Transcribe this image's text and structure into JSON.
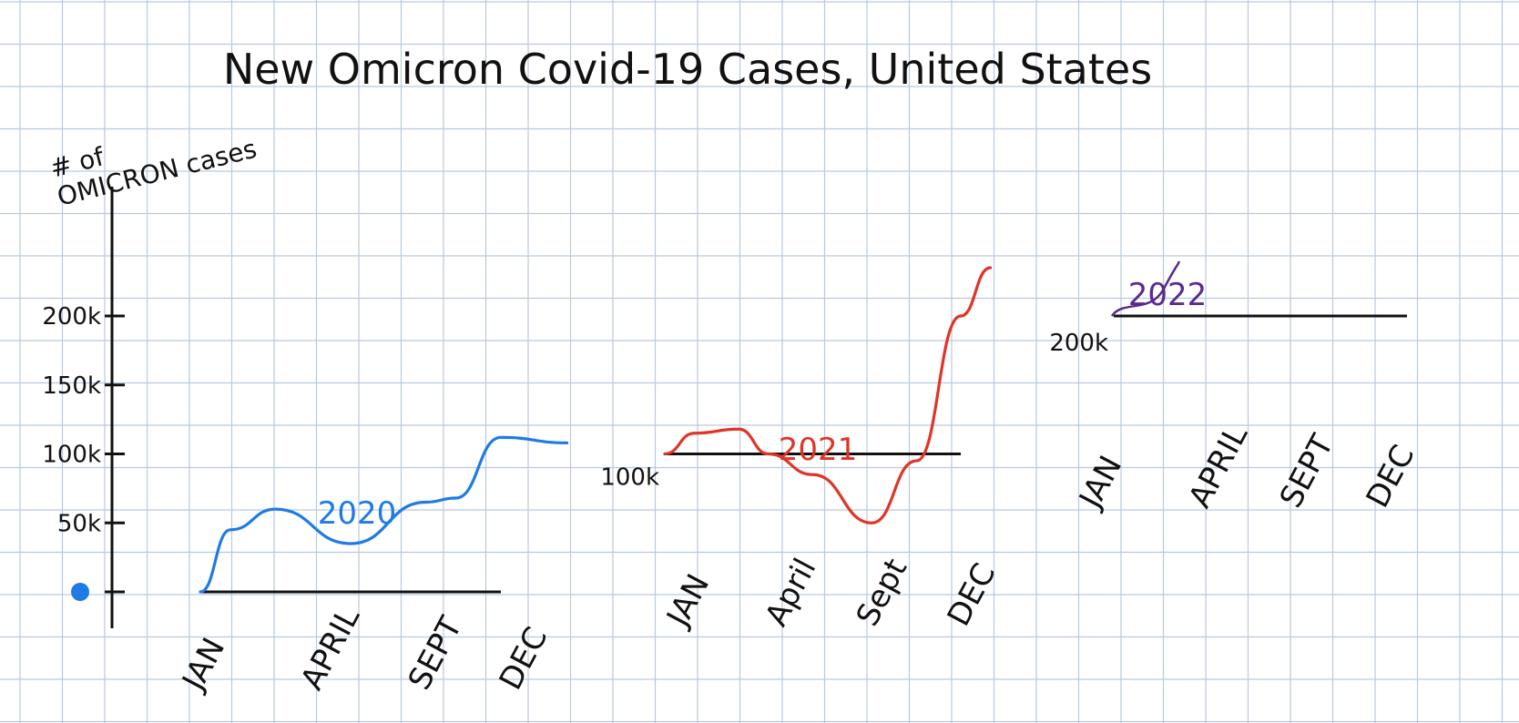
{
  "colors": {
    "grid": "#b9c9dd",
    "axis": "#111111",
    "blue": "#1e7be6",
    "red": "#e03426",
    "purple": "#5a2a8f"
  },
  "chart_data": {
    "type": "line",
    "title": "New Omicron Covid-19 Cases, United States",
    "ylabel": "# of OMICRON cases",
    "y_ticks": [
      {
        "label": "0",
        "value": 0,
        "color": "#1e7be6"
      },
      {
        "label": "50k",
        "value": 50000,
        "color": "#111111"
      },
      {
        "label": "100k",
        "value": 100000,
        "color": "#e03426"
      },
      {
        "label": "150k",
        "value": 150000,
        "color": "#111111"
      },
      {
        "label": "200k",
        "value": 200000,
        "color": "#5a2a8f"
      }
    ],
    "ylim": [
      0,
      200000
    ],
    "panels": [
      {
        "year": "2020",
        "color": "#1e7be6",
        "baseline_value": 0,
        "baseline_label": "",
        "months": [
          "JAN",
          "APRIL",
          "SEPT",
          "DEC"
        ],
        "x": [
          0,
          0.1,
          0.25,
          0.5,
          0.75,
          0.85,
          1.0,
          1.22
        ],
        "values": [
          0,
          45000,
          60000,
          35000,
          65000,
          68000,
          112000,
          108000
        ]
      },
      {
        "year": "2021",
        "color": "#e03426",
        "baseline_value": 100000,
        "baseline_label": "100k",
        "months": [
          "JAN",
          "April",
          "Sept",
          "DEC"
        ],
        "x": [
          0,
          0.1,
          0.25,
          0.35,
          0.5,
          0.7,
          0.85,
          1.0,
          1.1
        ],
        "values": [
          100000,
          115000,
          118000,
          100000,
          85000,
          50000,
          95000,
          200000,
          235000
        ]
      },
      {
        "year": "2022",
        "color": "#5a2a8f",
        "baseline_value": 200000,
        "baseline_label": "200k",
        "months": [
          "JAN",
          "APRIL",
          "SEPT",
          "DEC"
        ],
        "x": [
          0,
          1
        ],
        "values": [
          200000,
          200000
        ]
      }
    ]
  }
}
